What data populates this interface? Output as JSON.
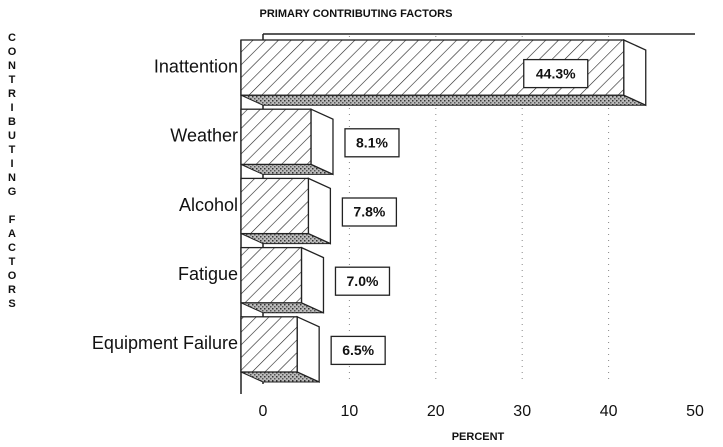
{
  "chart_data": {
    "type": "bar",
    "orientation": "horizontal",
    "title": "PRIMARY CONTRIBUTING FACTORS",
    "x_label": "PERCENT",
    "y_label": "CONTRIBUTING FACTORS",
    "categories": [
      "Inattention",
      "Weather",
      "Alcohol",
      "Fatigue",
      "Equipment Failure"
    ],
    "values": [
      44.3,
      8.1,
      7.8,
      7.0,
      6.5
    ],
    "value_labels": [
      "44.3%",
      "8.1%",
      "7.8%",
      "7.0%",
      "6.5%"
    ],
    "color": "#222222",
    "xlim": [
      0,
      50
    ],
    "xticks": [
      0,
      10,
      20,
      30,
      40,
      50
    ],
    "grid": true
  }
}
